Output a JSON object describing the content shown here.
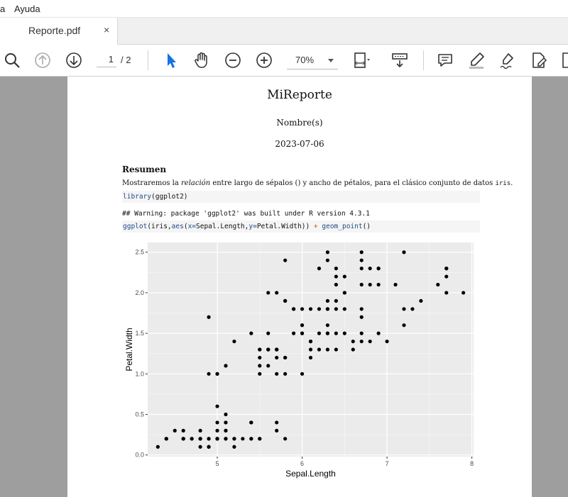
{
  "menu": {
    "partial_item": "a",
    "help": "Ayuda"
  },
  "tab": {
    "title": "Reporte.pdf",
    "close": "×"
  },
  "toolbar": {
    "current_page": "1",
    "total_pages": "/ 2",
    "zoom": "70%",
    "icons": [
      "search-icon",
      "page-up-icon",
      "page-down-icon",
      "select-cursor-icon",
      "hand-tool-icon",
      "zoom-out-icon",
      "zoom-in-icon",
      "page-fit-icon",
      "scroll-mode-icon",
      "comment-icon",
      "highlight-icon",
      "sign-icon",
      "edit-pdf-icon"
    ]
  },
  "document": {
    "title": "MiReporte",
    "author": "Nombre(s)",
    "date": "2023-07-06",
    "abstract_heading": "Resumen",
    "abstract_text_1": "Mostraremos la ",
    "abstract_em": "relación",
    "abstract_text_2": " entre largo de sépalos () y ancho de pétalos, para el clásico conjunto de datos ",
    "abstract_code": "iris",
    "abstract_text_3": ".",
    "code1_fn": "library",
    "code1_rest": "(ggplot2)",
    "output": "## Warning: package 'ggplot2' was built under R version 4.3.1",
    "code2": {
      "fn1": "ggplot",
      "p1": "(iris,",
      "fn2": "aes",
      "p2": "(",
      "arg1": "x=",
      "p3": "Sepal.Length,",
      "arg2": "y=",
      "p4": "Petal.Width)) ",
      "op": "+",
      "p5": " ",
      "fn3": "geom_point",
      "p6": "()"
    }
  },
  "chart_data": {
    "type": "scatter",
    "xlabel": "Sepal.Length",
    "ylabel": "Petal.Width",
    "xlim": [
      4.18,
      8.02
    ],
    "ylim": [
      -0.02,
      2.62
    ],
    "xticks": [
      5,
      6,
      7,
      8
    ],
    "xtick_labels": [
      "5",
      "6",
      "7",
      "8"
    ],
    "yticks": [
      0,
      0.5,
      1,
      1.5,
      2,
      2.5
    ],
    "ytick_labels": [
      "0.0",
      "0.5",
      "1.0",
      "1.5",
      "2.0",
      "2.5"
    ],
    "grid": true,
    "background": "#ebebeb",
    "point_color": "#000000",
    "points": [
      [
        5.1,
        0.2
      ],
      [
        4.9,
        0.2
      ],
      [
        4.7,
        0.2
      ],
      [
        4.6,
        0.2
      ],
      [
        5.0,
        0.2
      ],
      [
        5.4,
        0.4
      ],
      [
        4.6,
        0.3
      ],
      [
        5.0,
        0.2
      ],
      [
        4.4,
        0.2
      ],
      [
        4.9,
        0.1
      ],
      [
        5.4,
        0.2
      ],
      [
        4.8,
        0.2
      ],
      [
        4.8,
        0.1
      ],
      [
        4.3,
        0.1
      ],
      [
        5.8,
        0.2
      ],
      [
        5.7,
        0.4
      ],
      [
        5.4,
        0.4
      ],
      [
        5.1,
        0.3
      ],
      [
        5.7,
        0.3
      ],
      [
        5.1,
        0.3
      ],
      [
        5.4,
        0.2
      ],
      [
        5.1,
        0.4
      ],
      [
        4.6,
        0.2
      ],
      [
        5.1,
        0.5
      ],
      [
        4.8,
        0.2
      ],
      [
        5.0,
        0.2
      ],
      [
        5.0,
        0.4
      ],
      [
        5.2,
        0.2
      ],
      [
        5.2,
        0.2
      ],
      [
        4.7,
        0.2
      ],
      [
        4.8,
        0.2
      ],
      [
        5.4,
        0.4
      ],
      [
        5.2,
        0.1
      ],
      [
        5.5,
        0.2
      ],
      [
        4.9,
        0.2
      ],
      [
        5.0,
        0.2
      ],
      [
        5.5,
        0.2
      ],
      [
        4.9,
        0.1
      ],
      [
        4.4,
        0.2
      ],
      [
        5.1,
        0.2
      ],
      [
        5.0,
        0.3
      ],
      [
        4.5,
        0.3
      ],
      [
        4.4,
        0.2
      ],
      [
        5.0,
        0.6
      ],
      [
        5.1,
        0.4
      ],
      [
        4.8,
        0.3
      ],
      [
        5.1,
        0.2
      ],
      [
        4.6,
        0.2
      ],
      [
        5.3,
        0.2
      ],
      [
        5.0,
        0.2
      ],
      [
        7.0,
        1.4
      ],
      [
        6.4,
        1.5
      ],
      [
        6.9,
        1.5
      ],
      [
        5.5,
        1.3
      ],
      [
        6.5,
        1.5
      ],
      [
        5.7,
        1.3
      ],
      [
        6.3,
        1.6
      ],
      [
        4.9,
        1.0
      ],
      [
        6.6,
        1.3
      ],
      [
        5.2,
        1.4
      ],
      [
        5.0,
        1.0
      ],
      [
        5.9,
        1.5
      ],
      [
        6.0,
        1.0
      ],
      [
        6.1,
        1.4
      ],
      [
        5.6,
        1.3
      ],
      [
        6.7,
        1.4
      ],
      [
        5.6,
        1.5
      ],
      [
        5.8,
        1.0
      ],
      [
        6.2,
        1.5
      ],
      [
        5.6,
        1.1
      ],
      [
        5.9,
        1.8
      ],
      [
        6.1,
        1.3
      ],
      [
        6.3,
        1.5
      ],
      [
        6.1,
        1.2
      ],
      [
        6.4,
        1.3
      ],
      [
        6.6,
        1.4
      ],
      [
        6.8,
        1.4
      ],
      [
        6.7,
        1.7
      ],
      [
        6.0,
        1.5
      ],
      [
        5.7,
        1.0
      ],
      [
        5.5,
        1.1
      ],
      [
        5.5,
        1.0
      ],
      [
        5.8,
        1.2
      ],
      [
        6.0,
        1.6
      ],
      [
        5.4,
        1.5
      ],
      [
        6.0,
        1.6
      ],
      [
        6.7,
        1.5
      ],
      [
        6.3,
        1.3
      ],
      [
        5.6,
        1.3
      ],
      [
        5.5,
        1.3
      ],
      [
        5.5,
        1.2
      ],
      [
        6.1,
        1.4
      ],
      [
        5.8,
        1.2
      ],
      [
        5.0,
        1.0
      ],
      [
        5.6,
        1.3
      ],
      [
        5.7,
        1.2
      ],
      [
        5.7,
        1.3
      ],
      [
        6.2,
        1.3
      ],
      [
        5.1,
        1.1
      ],
      [
        5.7,
        1.3
      ],
      [
        6.3,
        2.5
      ],
      [
        5.8,
        1.9
      ],
      [
        7.1,
        2.1
      ],
      [
        6.3,
        1.8
      ],
      [
        6.5,
        2.2
      ],
      [
        7.6,
        2.1
      ],
      [
        4.9,
        1.7
      ],
      [
        7.3,
        1.8
      ],
      [
        6.7,
        1.8
      ],
      [
        7.2,
        2.5
      ],
      [
        6.5,
        2.0
      ],
      [
        6.4,
        1.9
      ],
      [
        6.8,
        2.1
      ],
      [
        5.7,
        2.0
      ],
      [
        5.8,
        2.4
      ],
      [
        6.4,
        2.3
      ],
      [
        6.5,
        1.8
      ],
      [
        7.7,
        2.2
      ],
      [
        7.7,
        2.3
      ],
      [
        6.0,
        1.5
      ],
      [
        6.9,
        2.3
      ],
      [
        5.6,
        2.0
      ],
      [
        7.7,
        2.0
      ],
      [
        6.3,
        1.8
      ],
      [
        6.7,
        2.1
      ],
      [
        7.2,
        1.8
      ],
      [
        6.2,
        1.8
      ],
      [
        6.1,
        1.8
      ],
      [
        6.4,
        2.1
      ],
      [
        7.2,
        1.6
      ],
      [
        7.4,
        1.9
      ],
      [
        7.9,
        2.0
      ],
      [
        6.4,
        2.2
      ],
      [
        6.3,
        1.5
      ],
      [
        6.1,
        1.4
      ],
      [
        7.7,
        2.3
      ],
      [
        6.3,
        2.4
      ],
      [
        6.4,
        1.8
      ],
      [
        6.0,
        1.8
      ],
      [
        6.9,
        2.1
      ],
      [
        6.7,
        2.4
      ],
      [
        6.9,
        2.3
      ],
      [
        5.8,
        1.9
      ],
      [
        6.8,
        2.3
      ],
      [
        6.7,
        2.5
      ],
      [
        6.7,
        2.3
      ],
      [
        6.3,
        1.9
      ],
      [
        6.5,
        2.0
      ],
      [
        6.2,
        2.3
      ],
      [
        5.9,
        1.8
      ]
    ]
  }
}
